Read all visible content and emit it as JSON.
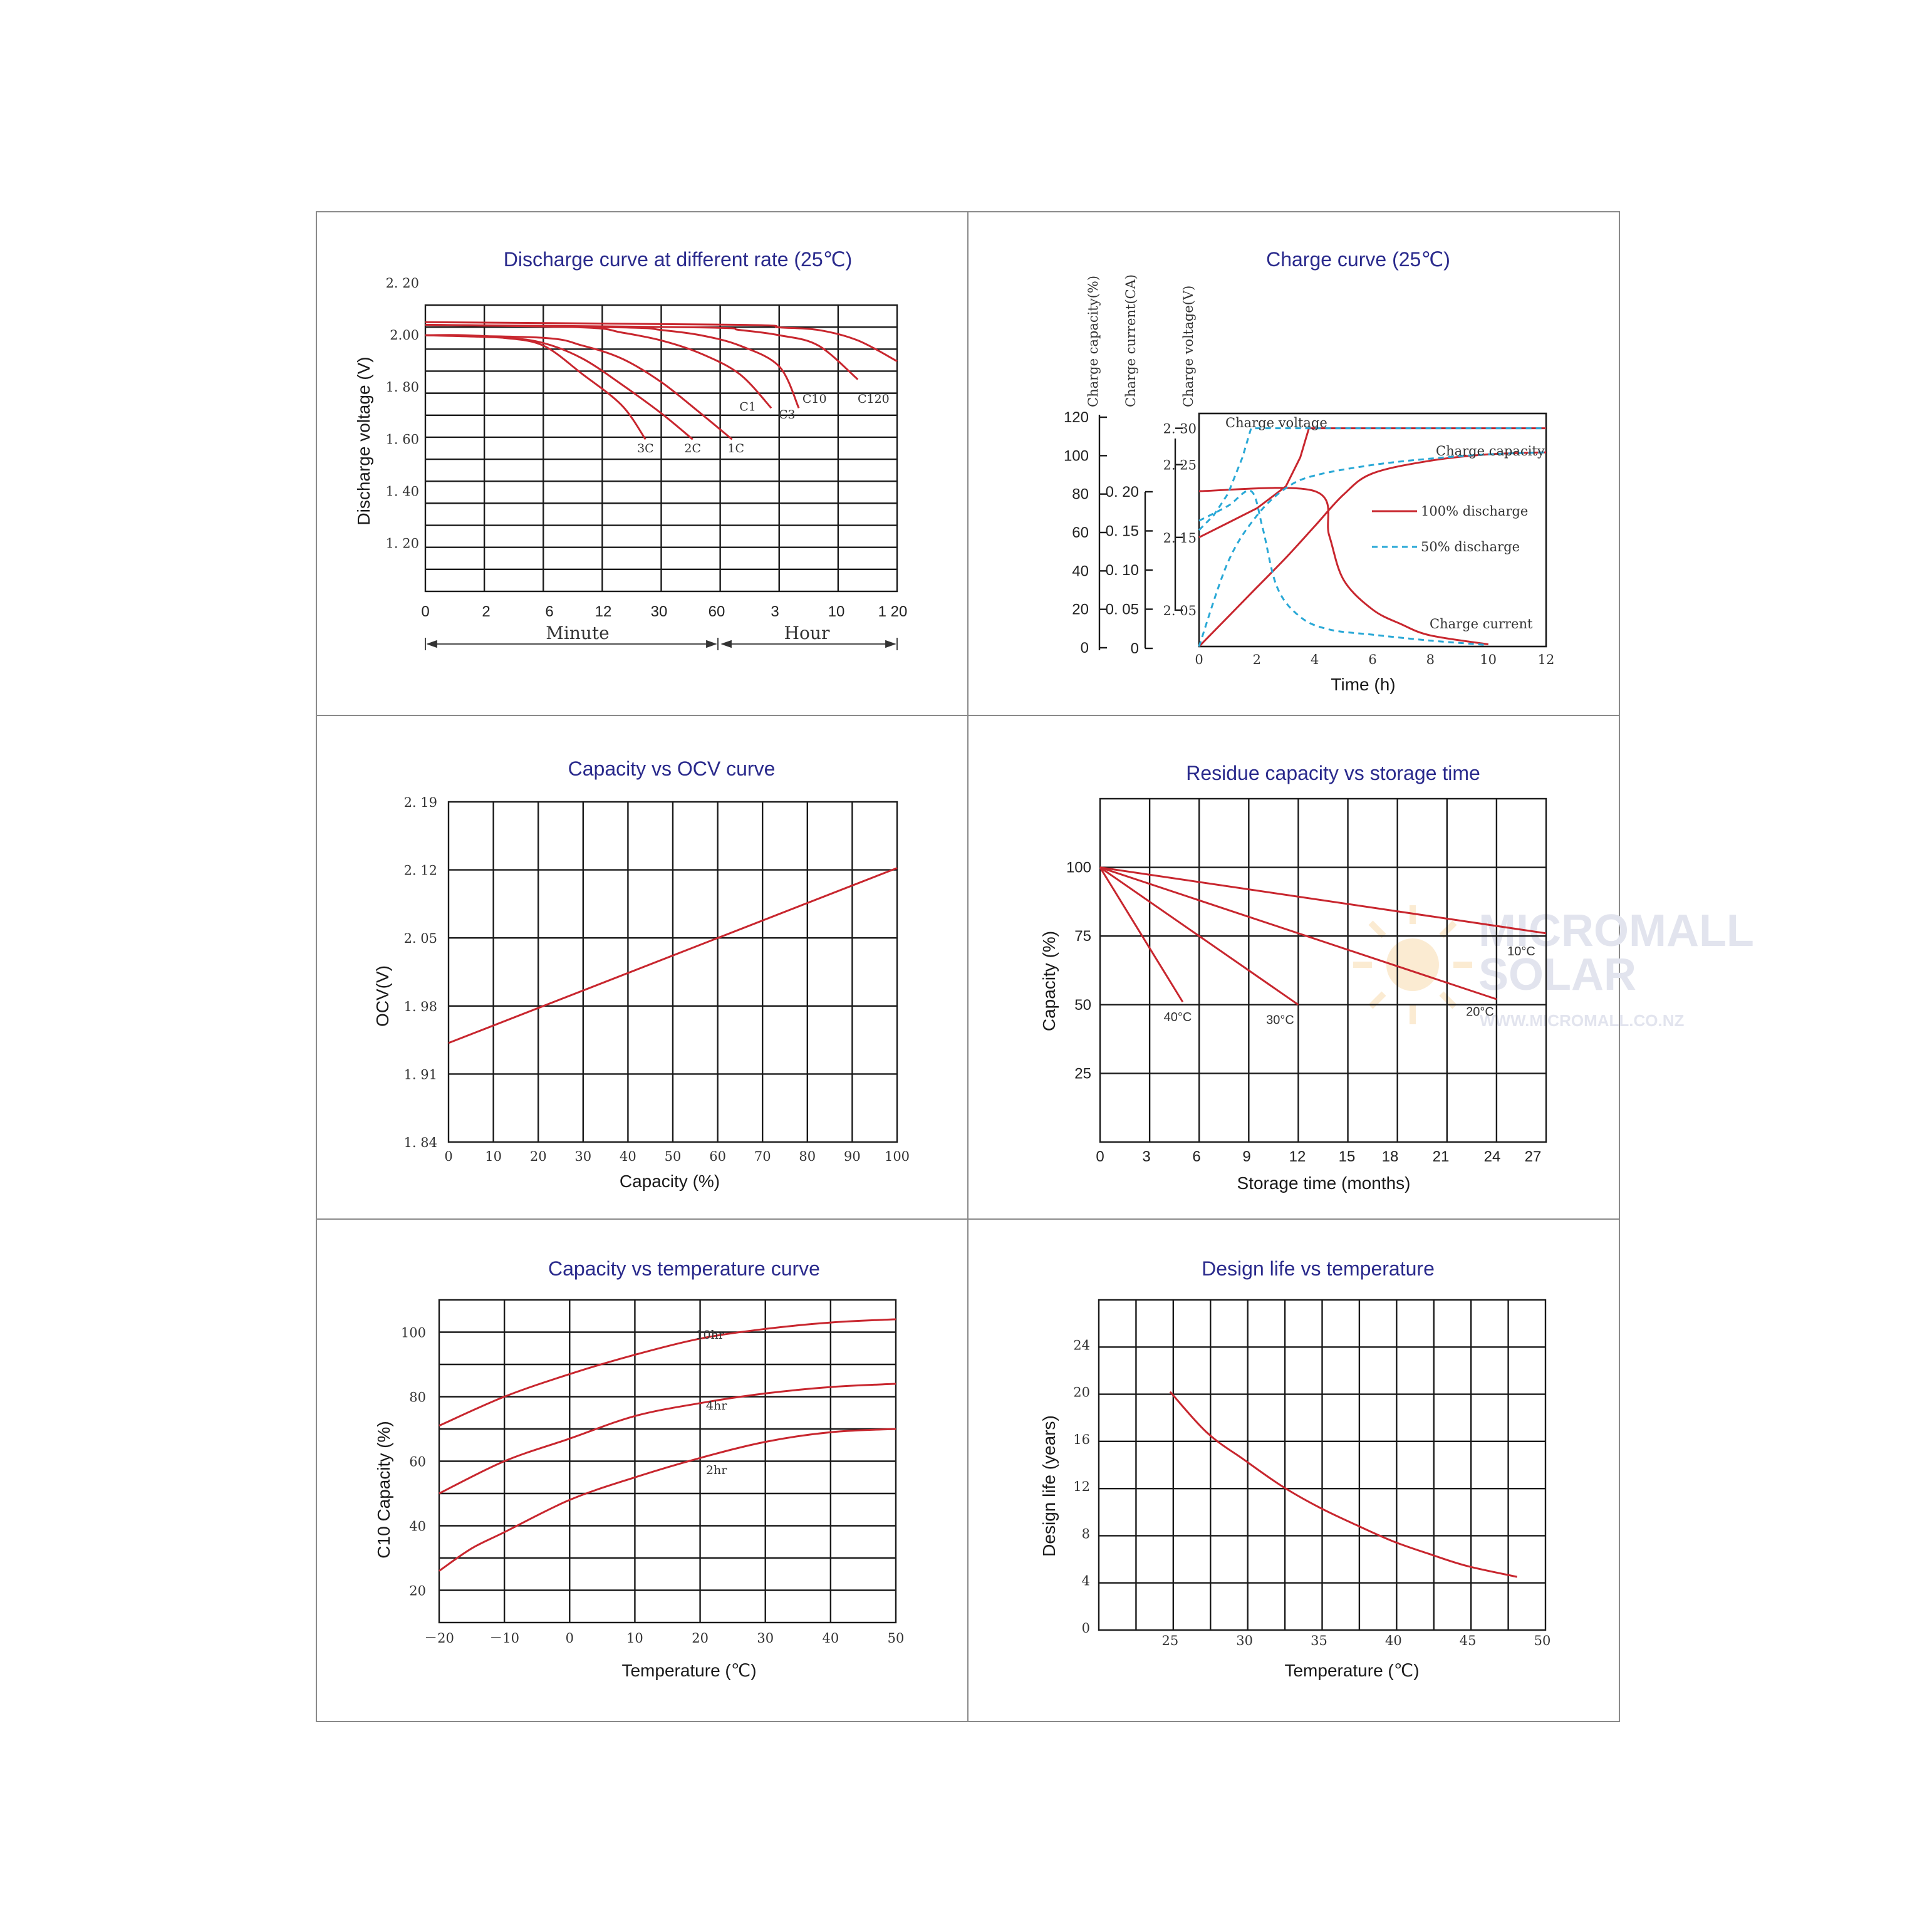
{
  "watermark": {
    "line1": "MICROMALL",
    "line2": "SOLAR",
    "url": "WWW.MICROMALL.CO.NZ"
  },
  "chart_data": [
    {
      "id": "discharge",
      "type": "line",
      "title": "Discharge curve at different rate (25℃)",
      "xlabel": "",
      "ylabel": "Discharge voltage (V)",
      "x_tick_labels": [
        "0",
        "2",
        "6",
        "12",
        "30",
        "60",
        "3",
        "10",
        "1 20"
      ],
      "y_tick_labels": [
        "2. 20",
        "2.00",
        "1. 80",
        "1. 60",
        "1. 40",
        "1. 20"
      ],
      "ylim": [
        1.1,
        2.2
      ],
      "range_labels": {
        "minute": "Minute",
        "hour": "Hour"
      },
      "series": [
        {
          "name": "3C",
          "points": [
            [
              0,
              2.0
            ],
            [
              1,
              2.0
            ],
            [
              2,
              1.99
            ],
            [
              3,
              1.96
            ],
            [
              4,
              1.85
            ],
            [
              5,
              1.73
            ],
            [
              5.6,
              1.6
            ]
          ]
        },
        {
          "name": "2C",
          "points": [
            [
              0,
              2.0
            ],
            [
              2,
              1.99
            ],
            [
              3,
              1.97
            ],
            [
              4,
              1.91
            ],
            [
              5,
              1.81
            ],
            [
              6,
              1.7
            ],
            [
              6.8,
              1.6
            ]
          ]
        },
        {
          "name": "1C",
          "points": [
            [
              0,
              2.0
            ],
            [
              3,
              1.99
            ],
            [
              4,
              1.96
            ],
            [
              5,
              1.91
            ],
            [
              6,
              1.82
            ],
            [
              7,
              1.7
            ],
            [
              7.8,
              1.6
            ]
          ]
        },
        {
          "name": "C1",
          "points": [
            [
              0,
              2.04
            ],
            [
              4,
              2.03
            ],
            [
              5,
              2.01
            ],
            [
              6,
              1.98
            ],
            [
              7,
              1.93
            ],
            [
              8,
              1.85
            ],
            [
              8.8,
              1.72
            ]
          ]
        },
        {
          "name": "C3",
          "points": [
            [
              0,
              2.04
            ],
            [
              5,
              2.03
            ],
            [
              6,
              2.02
            ],
            [
              7,
              2.0
            ],
            [
              8,
              1.96
            ],
            [
              9,
              1.88
            ],
            [
              9.5,
              1.72
            ]
          ]
        },
        {
          "name": "C10",
          "points": [
            [
              0,
              2.04
            ],
            [
              7,
              2.03
            ],
            [
              8,
              2.02
            ],
            [
              9,
              2.0
            ],
            [
              10,
              1.96
            ],
            [
              11,
              1.83
            ]
          ]
        },
        {
          "name": "C120",
          "points": [
            [
              0,
              2.05
            ],
            [
              8,
              2.04
            ],
            [
              9,
              2.03
            ],
            [
              10,
              2.02
            ],
            [
              11,
              1.98
            ],
            [
              12,
              1.9
            ]
          ]
        }
      ],
      "curve_labels": [
        {
          "text": "3C",
          "x": 5.6,
          "y": 1.55
        },
        {
          "text": "2C",
          "x": 6.8,
          "y": 1.55
        },
        {
          "text": "1C",
          "x": 7.9,
          "y": 1.55
        },
        {
          "text": "C1",
          "x": 8.2,
          "y": 1.71
        },
        {
          "text": "C3",
          "x": 9.2,
          "y": 1.68
        },
        {
          "text": "C10",
          "x": 9.9,
          "y": 1.74
        },
        {
          "text": "C120",
          "x": 11.4,
          "y": 1.74
        }
      ]
    },
    {
      "id": "charge",
      "type": "line",
      "title": "Charge curve (25℃)",
      "xlabel": "Time (h)",
      "x_tick_labels": [
        "0",
        "2",
        "4",
        "6",
        "8",
        "10",
        "12"
      ],
      "xlim": [
        0,
        12
      ],
      "y_axis_headers": [
        "Charge capacity(%)",
        "Charge current(CA)",
        "Charge voltage(V)"
      ],
      "capacity_ticks": [
        "0",
        "20",
        "40",
        "60",
        "80",
        "100",
        "120"
      ],
      "current_ticks": [
        "0",
        "0. 05",
        "0. 10",
        "0. 15",
        "0. 20"
      ],
      "voltage_ticks": [
        "2. 05",
        "2. 15",
        "2. 25",
        "2. 30"
      ],
      "curve_labels": {
        "voltage": "Charge voltage",
        "capacity": "Charge capacity",
        "current": "Charge current"
      },
      "legend": [
        {
          "label": "100% discharge",
          "style": "solid",
          "color": "#c8262e"
        },
        {
          "label": "50% discharge",
          "style": "dashed",
          "color": "#29a8d6"
        }
      ],
      "series": [
        {
          "name": "100% discharge",
          "role": "voltage",
          "points": [
            [
              0,
              2.15
            ],
            [
              1,
              2.17
            ],
            [
              2,
              2.19
            ],
            [
              3,
              2.22
            ],
            [
              3.5,
              2.26
            ],
            [
              3.8,
              2.3
            ],
            [
              12,
              2.3
            ]
          ]
        },
        {
          "name": "100% discharge",
          "role": "capacity",
          "points": [
            [
              0,
              0
            ],
            [
              1,
              14
            ],
            [
              2,
              28
            ],
            [
              3,
              42
            ],
            [
              4,
              57
            ],
            [
              5,
              72
            ],
            [
              6,
              82
            ],
            [
              8,
              88
            ],
            [
              10,
              91
            ],
            [
              12,
              92
            ]
          ]
        },
        {
          "name": "100% discharge",
          "role": "current",
          "points": [
            [
              0,
              0.21
            ],
            [
              4,
              0.21
            ],
            [
              4.5,
              0.15
            ],
            [
              5,
              0.09
            ],
            [
              6,
              0.05
            ],
            [
              7,
              0.03
            ],
            [
              8,
              0.015
            ],
            [
              10,
              0.003
            ]
          ]
        },
        {
          "name": "50% discharge",
          "role": "voltage",
          "points": [
            [
              0,
              2.16
            ],
            [
              0.5,
              2.18
            ],
            [
              1.0,
              2.21
            ],
            [
              1.5,
              2.26
            ],
            [
              1.8,
              2.3
            ],
            [
              12,
              2.3
            ]
          ]
        },
        {
          "name": "50% discharge",
          "role": "capacity",
          "points": [
            [
              0,
              0
            ],
            [
              1,
              40
            ],
            [
              2,
              62
            ],
            [
              3,
              75
            ],
            [
              4,
              81
            ],
            [
              6,
              86
            ],
            [
              8,
              89
            ],
            [
              10,
              91
            ],
            [
              12,
              92
            ]
          ]
        },
        {
          "name": "50% discharge",
          "role": "current",
          "points": [
            [
              0,
              0.17
            ],
            [
              1,
              0.19
            ],
            [
              1.8,
              0.21
            ],
            [
              2.2,
              0.16
            ],
            [
              2.7,
              0.08
            ],
            [
              3.5,
              0.04
            ],
            [
              4.5,
              0.023
            ],
            [
              6,
              0.016
            ],
            [
              8,
              0.008
            ],
            [
              10,
              0.002
            ]
          ]
        }
      ]
    },
    {
      "id": "ocv",
      "type": "line",
      "title": "Capacity vs OCV curve",
      "xlabel": "Capacity (%)",
      "ylabel": "OCV(V)",
      "x_tick_labels": [
        "0",
        "10",
        "20",
        "30",
        "40",
        "50",
        "60",
        "70",
        "80",
        "90",
        "100"
      ],
      "y_tick_labels": [
        "1. 84",
        "1. 91",
        "1. 98",
        "2. 05",
        "2. 12",
        "2. 19"
      ],
      "xlim": [
        0,
        100
      ],
      "ylim": [
        1.84,
        2.19
      ],
      "series": [
        {
          "points": [
            [
              0,
              1.94
            ],
            [
              100,
              2.12
            ]
          ]
        }
      ]
    },
    {
      "id": "residue",
      "type": "line",
      "title": "Residue capacity vs storage time",
      "xlabel": "Storage time (months)",
      "ylabel": "Capacity (%)",
      "x_tick_labels": [
        "0",
        "3",
        "6",
        "9",
        "12",
        "15",
        "18",
        "21",
        "24",
        "27"
      ],
      "y_tick_labels": [
        "25",
        "50",
        "75",
        "100"
      ],
      "xlim": [
        0,
        27
      ],
      "ylim": [
        0,
        125
      ],
      "series": [
        {
          "name": "40°C",
          "points": [
            [
              0,
              100
            ],
            [
              5,
              51
            ]
          ]
        },
        {
          "name": "30°C",
          "points": [
            [
              0,
              100
            ],
            [
              12,
              50
            ]
          ]
        },
        {
          "name": "20°C",
          "points": [
            [
              0,
              100
            ],
            [
              24,
              52
            ]
          ]
        },
        {
          "name": "10°C",
          "points": [
            [
              0,
              100
            ],
            [
              27,
              76
            ]
          ]
        }
      ],
      "curve_labels": [
        {
          "text": "40°C",
          "x": 4.7,
          "y": 44
        },
        {
          "text": "30°C",
          "x": 10.9,
          "y": 43
        },
        {
          "text": "20°C",
          "x": 23.0,
          "y": 46
        },
        {
          "text": "10°C",
          "x": 25.5,
          "y": 68
        }
      ]
    },
    {
      "id": "temp_capacity",
      "type": "line",
      "title": "Capacity vs temperature curve",
      "xlabel": "Temperature (℃)",
      "ylabel": "C10 Capacity (%)",
      "x_tick_labels": [
        "－20",
        "－10",
        "0",
        "10",
        "20",
        "30",
        "40",
        "50"
      ],
      "y_tick_labels": [
        "20",
        "40",
        "60",
        "80",
        "100"
      ],
      "xlim": [
        -20,
        50
      ],
      "ylim": [
        10,
        110
      ],
      "series": [
        {
          "name": "10hr",
          "points": [
            [
              -20,
              71
            ],
            [
              -10,
              80
            ],
            [
              0,
              87
            ],
            [
              10,
              93
            ],
            [
              20,
              98
            ],
            [
              30,
              101
            ],
            [
              40,
              103
            ],
            [
              50,
              104
            ]
          ]
        },
        {
          "name": "4hr",
          "points": [
            [
              -20,
              50
            ],
            [
              -10,
              60
            ],
            [
              0,
              67
            ],
            [
              10,
              74
            ],
            [
              20,
              78
            ],
            [
              30,
              81
            ],
            [
              40,
              83
            ],
            [
              50,
              84
            ]
          ]
        },
        {
          "name": "2hr",
          "points": [
            [
              -20,
              26
            ],
            [
              -15,
              33
            ],
            [
              -10,
              38
            ],
            [
              0,
              48
            ],
            [
              10,
              55
            ],
            [
              20,
              61
            ],
            [
              30,
              66
            ],
            [
              40,
              69
            ],
            [
              50,
              70
            ]
          ]
        }
      ],
      "curve_labels": [
        {
          "text": "10hr",
          "x": 21.5,
          "y": 98
        },
        {
          "text": "4hr",
          "x": 22.5,
          "y": 76
        },
        {
          "text": "2hr",
          "x": 22.5,
          "y": 56
        }
      ]
    },
    {
      "id": "design_life",
      "type": "line",
      "title": "Design life vs temperature",
      "xlabel": "Temperature (℃)",
      "ylabel": "Design life (years)",
      "x_tick_labels": [
        "25",
        "30",
        "35",
        "40",
        "45",
        "50"
      ],
      "y_tick_labels": [
        "0",
        "4",
        "8",
        "12",
        "16",
        "20",
        "24"
      ],
      "xlim": [
        20,
        50
      ],
      "ylim": [
        0,
        28
      ],
      "series": [
        {
          "points": [
            [
              25,
              20
            ],
            [
              27.5,
              16.5
            ],
            [
              30,
              14.2
            ],
            [
              32.5,
              12
            ],
            [
              35,
              10.2
            ],
            [
              37.5,
              8.7
            ],
            [
              40,
              7.3
            ],
            [
              42.5,
              6.2
            ],
            [
              45,
              5.2
            ],
            [
              48.3,
              4.3
            ]
          ]
        }
      ]
    }
  ]
}
